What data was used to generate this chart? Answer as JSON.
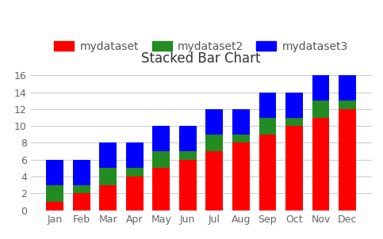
{
  "title": "Stacked Bar Chart",
  "categories": [
    "Jan",
    "Feb",
    "Mar",
    "Apr",
    "May",
    "Jun",
    "Jul",
    "Aug",
    "Sep",
    "Oct",
    "Nov",
    "Dec"
  ],
  "datasets": [
    {
      "label": "mydataset",
      "color": "#ff0000",
      "values": [
        1,
        2,
        3,
        4,
        5,
        6,
        7,
        8,
        9,
        10,
        11,
        12
      ]
    },
    {
      "label": "mydataset2",
      "color": "#228B22",
      "values": [
        2,
        1,
        2,
        1,
        2,
        1,
        2,
        1,
        2,
        1,
        2,
        1
      ]
    },
    {
      "label": "mydataset3",
      "color": "#0000ff",
      "values": [
        3,
        3,
        3,
        3,
        3,
        3,
        3,
        3,
        3,
        3,
        3,
        3
      ]
    }
  ],
  "ylim": [
    0,
    17
  ],
  "yticks": [
    0,
    2,
    4,
    6,
    8,
    10,
    12,
    14,
    16
  ],
  "background_color": "#ffffff",
  "grid_color": "#cccccc",
  "title_fontsize": 12,
  "legend_fontsize": 10,
  "tick_fontsize": 9,
  "bar_width": 0.65
}
